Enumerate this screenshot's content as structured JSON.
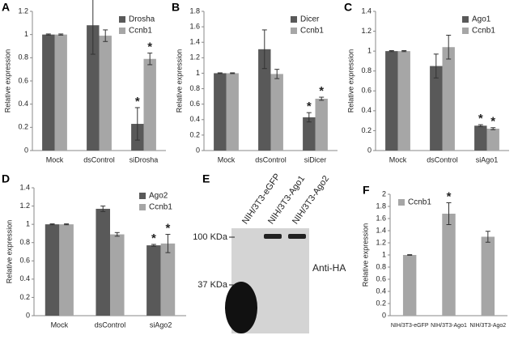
{
  "chart_data": [
    {
      "type": "bar",
      "panel": "A",
      "ylabel": "Relative expression",
      "categories": [
        "Mock",
        "dsControl",
        "siDrosha"
      ],
      "ylim": [
        0,
        1.2
      ],
      "yticks": [
        0,
        0.2,
        0.4,
        0.6,
        0.8,
        1,
        1.2
      ],
      "legend": "upper right",
      "series": [
        {
          "name": "Drosha",
          "color": "#595959",
          "values": [
            1,
            1.08,
            0.23
          ],
          "errors": [
            0.005,
            0.25,
            0.14
          ],
          "significance": [
            null,
            null,
            "*"
          ]
        },
        {
          "name": "Ccnb1",
          "color": "#a6a6a6",
          "values": [
            1,
            0.99,
            0.79
          ],
          "errors": [
            0.005,
            0.05,
            0.05
          ],
          "significance": [
            null,
            null,
            "*"
          ]
        }
      ]
    },
    {
      "type": "bar",
      "panel": "B",
      "ylabel": "Relative expression",
      "categories": [
        "Mock",
        "dsControl",
        "siDicer"
      ],
      "ylim": [
        0,
        1.8
      ],
      "yticks": [
        0,
        0.2,
        0.4,
        0.6,
        0.8,
        1,
        1.2,
        1.4,
        1.6,
        1.8
      ],
      "legend": "upper right",
      "series": [
        {
          "name": "Dicer",
          "color": "#595959",
          "values": [
            1,
            1.31,
            0.43
          ],
          "errors": [
            0.005,
            0.25,
            0.06
          ],
          "significance": [
            null,
            null,
            "*"
          ]
        },
        {
          "name": "Ccnb1",
          "color": "#a6a6a6",
          "values": [
            1,
            0.99,
            0.67
          ],
          "errors": [
            0.005,
            0.06,
            0.02
          ],
          "significance": [
            null,
            null,
            "*"
          ]
        }
      ]
    },
    {
      "type": "bar",
      "panel": "C",
      "ylabel": "Relative expression",
      "categories": [
        "Mock",
        "dsControl",
        "siAgo1"
      ],
      "ylim": [
        0,
        1.4
      ],
      "yticks": [
        0,
        0.2,
        0.4,
        0.6,
        0.8,
        1,
        1.2,
        1.4
      ],
      "legend": "upper right",
      "series": [
        {
          "name": "Ago1",
          "color": "#595959",
          "values": [
            1,
            0.85,
            0.25
          ],
          "errors": [
            0.005,
            0.12,
            0.01
          ],
          "significance": [
            null,
            null,
            "*"
          ]
        },
        {
          "name": "Ccnb1",
          "color": "#a6a6a6",
          "values": [
            1,
            1.04,
            0.22
          ],
          "errors": [
            0.005,
            0.12,
            0.01
          ],
          "significance": [
            null,
            null,
            "*"
          ]
        }
      ]
    },
    {
      "type": "bar",
      "panel": "D",
      "ylabel": "Relative expression",
      "categories": [
        "Mock",
        "dsControl",
        "siAgo2"
      ],
      "ylim": [
        0,
        1.4
      ],
      "yticks": [
        0,
        0.2,
        0.4,
        0.6,
        0.8,
        1,
        1.2,
        1.4
      ],
      "legend": "upper right",
      "series": [
        {
          "name": "Ago2",
          "color": "#595959",
          "values": [
            1,
            1.17,
            0.77
          ],
          "errors": [
            0.005,
            0.03,
            0.01
          ],
          "significance": [
            null,
            null,
            "*"
          ]
        },
        {
          "name": "Ccnb1",
          "color": "#a6a6a6",
          "values": [
            1,
            0.89,
            0.79
          ],
          "errors": [
            0.005,
            0.02,
            0.1
          ],
          "significance": [
            null,
            null,
            "*"
          ]
        }
      ]
    },
    {
      "type": "bar",
      "panel": "F",
      "ylabel": "Relative expression",
      "categories": [
        "NIH/3T3-eGFP",
        "NIH/3T3-Ago1",
        "NIH/3T3-Ago2"
      ],
      "ylim": [
        0,
        2
      ],
      "yticks": [
        0,
        0.2,
        0.4,
        0.6,
        0.8,
        1,
        1.2,
        1.4,
        1.6,
        1.8,
        2
      ],
      "legend": "upper left",
      "series": [
        {
          "name": "Ccnb1",
          "color": "#a6a6a6",
          "values": [
            1,
            1.68,
            1.3
          ],
          "errors": [
            0.005,
            0.18,
            0.09
          ],
          "significance": [
            null,
            "*",
            null
          ]
        }
      ]
    }
  ],
  "blot": {
    "panel": "E",
    "lanes": [
      "NIH/3T3-eGFP",
      "NIH/3T3-Ago1",
      "NIH/3T3-Ago2"
    ],
    "markers": [
      "100 KDa",
      "37 KDa"
    ],
    "antibody": "Anti-HA"
  }
}
